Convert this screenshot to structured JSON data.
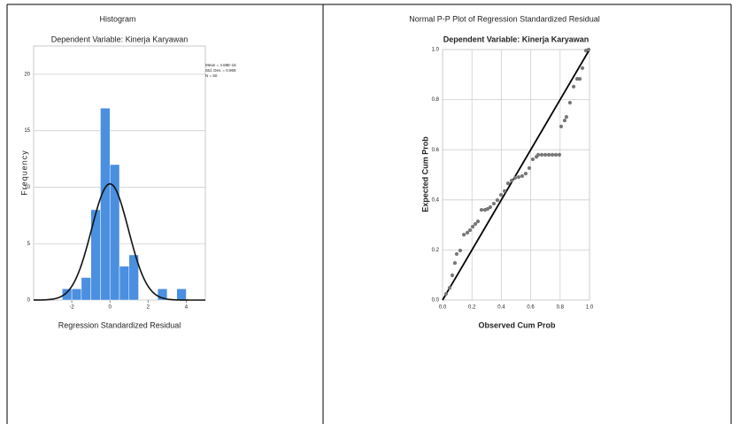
{
  "chart_data": [
    {
      "type": "histogram",
      "title": "Histogram",
      "subtitle": "Dependent Variable: Kinerja Karyawan",
      "x_label": "Regression Standardized Residual",
      "y_label": "Frequency",
      "bins": [
        -2.5,
        -2,
        -1.5,
        -1,
        -0.5,
        0,
        0.5,
        1,
        1.5,
        2,
        2.5,
        3,
        3.5,
        4
      ],
      "values": [
        1,
        1,
        2,
        8,
        17,
        12,
        3,
        4,
        0,
        0,
        1,
        0,
        1
      ],
      "color": "#4a8fe0",
      "stats": [
        {
          "value": 4.68e-15,
          "label": "Mean = 4.68E-15"
        },
        {
          "value": 0.969,
          "label": "Std. Dev. = 0.969"
        },
        {
          "value": 50,
          "label": "N = 50"
        }
      ],
      "xlim": [
        -4,
        5
      ],
      "ylim": [
        0,
        22.5
      ],
      "xticks": [
        -2,
        0,
        2,
        4
      ],
      "yticks": [
        0,
        5,
        10,
        15,
        20
      ],
      "grid": true
    },
    {
      "type": "scatter",
      "title": "Normal P-P Plot of Regression Standardized Residual",
      "subtitle": "Dependent Variable: Kinerja Karyawan",
      "x_label": "Observed Cum Prob",
      "y_label": "Expected Cum Prob",
      "x": [
        0.024,
        0.048,
        0.066,
        0.084,
        0.096,
        0.12,
        0.145,
        0.169,
        0.187,
        0.205,
        0.223,
        0.241,
        0.265,
        0.289,
        0.307,
        0.325,
        0.349,
        0.373,
        0.398,
        0.422,
        0.446,
        0.47,
        0.494,
        0.518,
        0.542,
        0.566,
        0.59,
        0.614,
        0.639,
        0.651,
        0.675,
        0.699,
        0.723,
        0.747,
        0.771,
        0.795,
        0.807,
        0.831,
        0.843,
        0.867,
        0.892,
        0.916,
        0.934,
        0.952,
        0.976,
        0.994
      ],
      "values": [
        0.025,
        0.049,
        0.099,
        0.148,
        0.184,
        0.198,
        0.261,
        0.269,
        0.279,
        0.293,
        0.304,
        0.314,
        0.36,
        0.36,
        0.364,
        0.371,
        0.385,
        0.399,
        0.42,
        0.435,
        0.466,
        0.477,
        0.488,
        0.491,
        0.495,
        0.505,
        0.527,
        0.562,
        0.572,
        0.58,
        0.58,
        0.58,
        0.58,
        0.58,
        0.58,
        0.58,
        0.693,
        0.717,
        0.731,
        0.788,
        0.852,
        0.883,
        0.883,
        0.926,
        0.996,
        1
      ],
      "color": "#777777",
      "xlim": [
        0,
        1
      ],
      "ylim": [
        0,
        1
      ],
      "xticks": [
        {
          "value": 0,
          "label": "0.0"
        },
        0.2,
        0.4,
        0.6,
        0.8,
        {
          "value": 1,
          "label": "1.0"
        }
      ],
      "yticks": [
        {
          "value": 0,
          "label": "0.0"
        },
        0.2,
        0.4,
        0.6,
        0.8,
        {
          "value": 1,
          "label": "1.0"
        }
      ],
      "grid": true
    }
  ]
}
